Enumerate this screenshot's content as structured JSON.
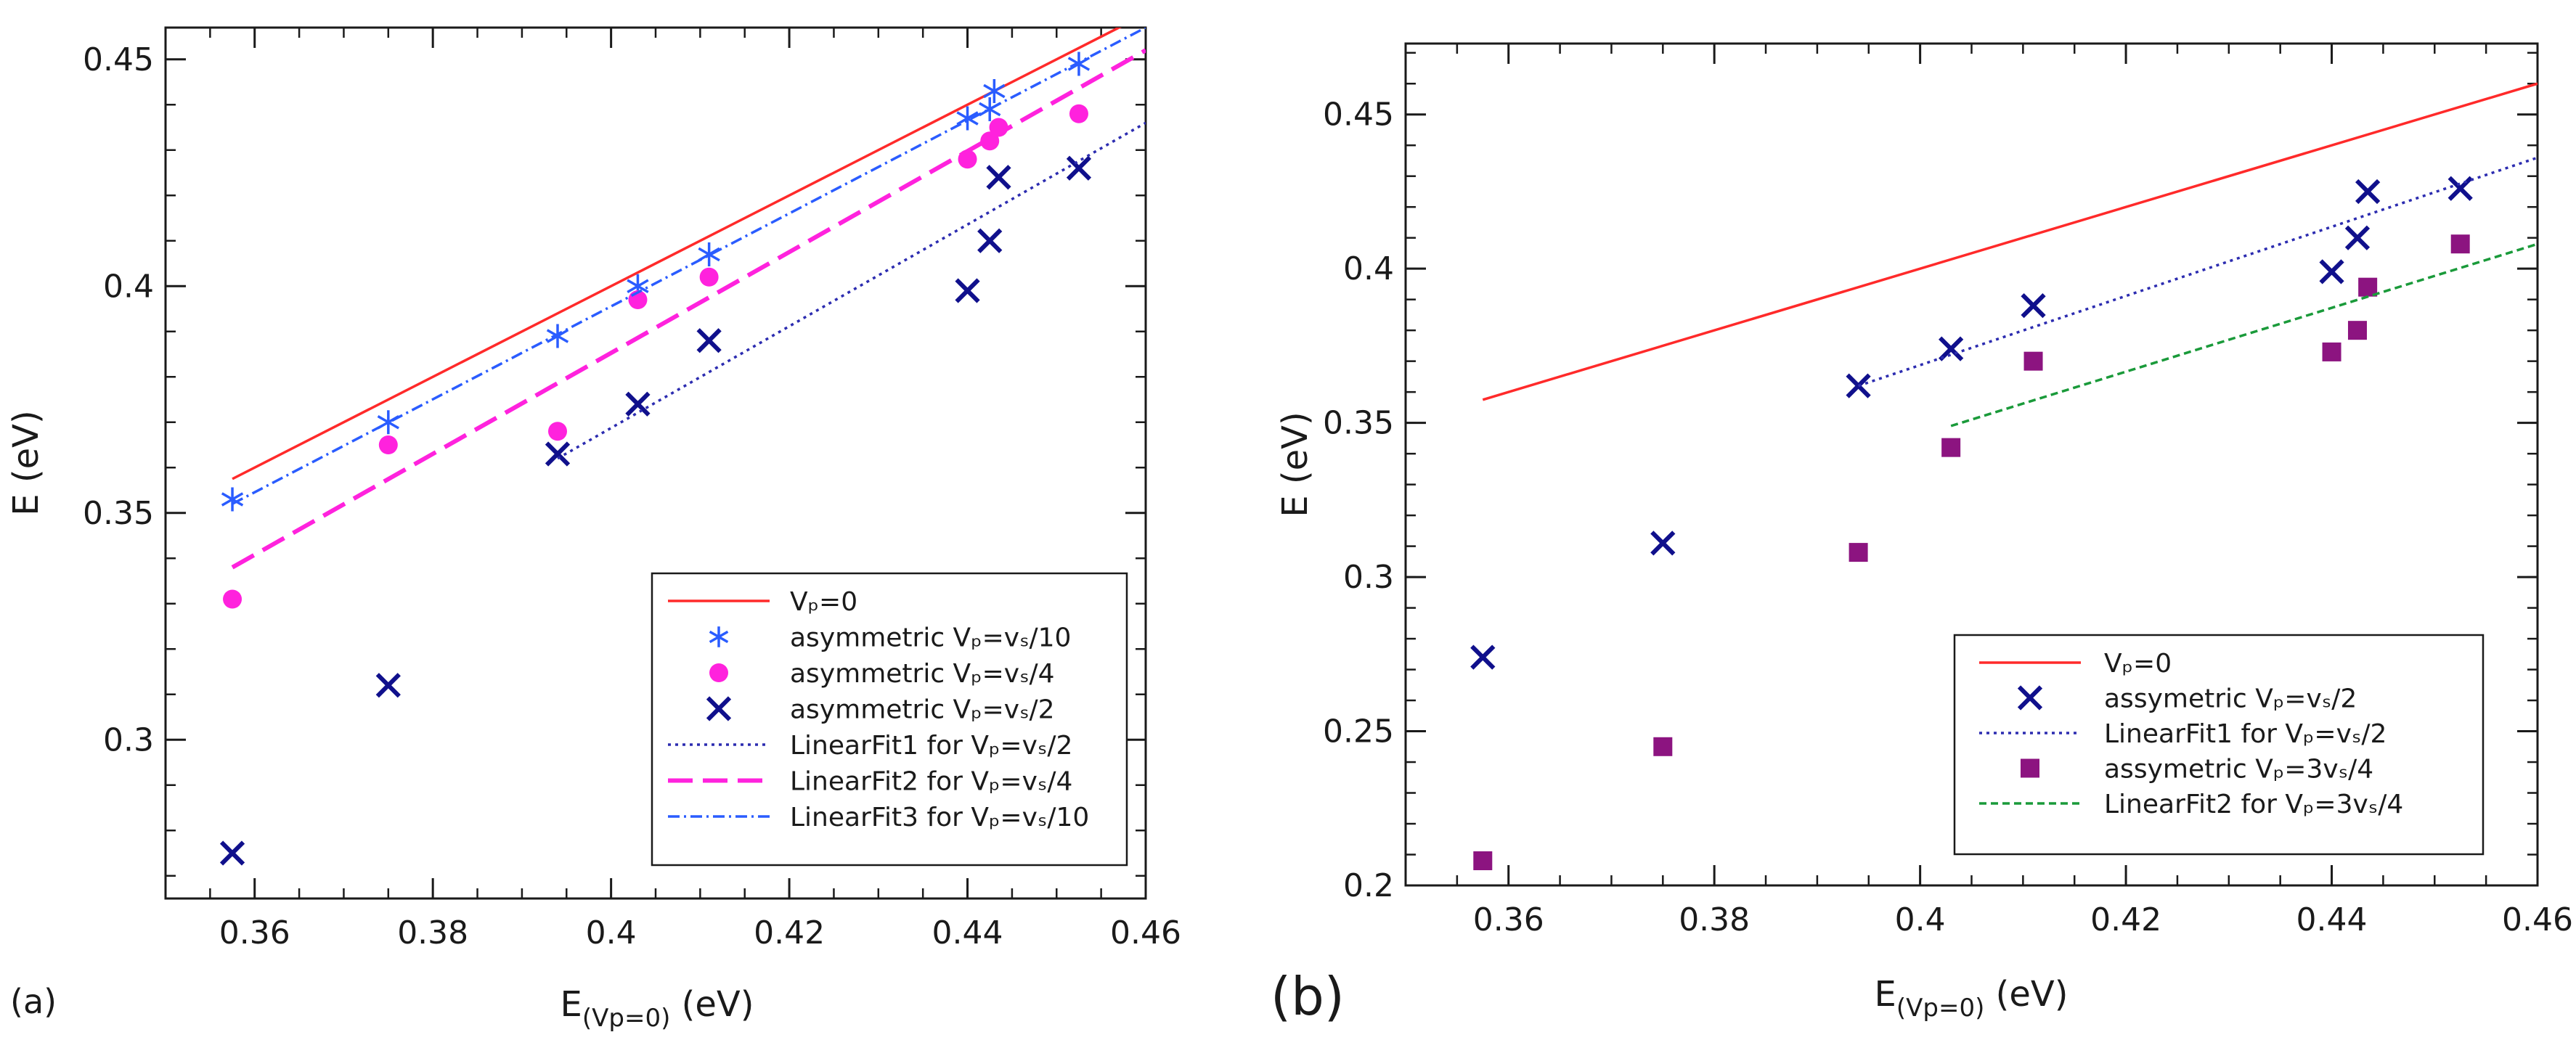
{
  "chart_data": [
    {
      "id": "a",
      "type": "scatter",
      "panel_label": "(a)",
      "xlabel_main": "E",
      "xlabel_sub": "(Vp=0)",
      "xlabel_unit": " (eV)",
      "ylabel": "E (eV)",
      "xlim": [
        0.35,
        0.46
      ],
      "ylim": [
        0.265,
        0.457
      ],
      "xticks": [
        0.36,
        0.38,
        0.4,
        0.42,
        0.44,
        0.46
      ],
      "xtick_labels": [
        "0.36",
        "0.38",
        "0.4",
        "0.42",
        "0.44",
        "0.46"
      ],
      "yticks": [
        0.3,
        0.35,
        0.4,
        0.45
      ],
      "ytick_labels": [
        "0.3",
        "0.35",
        "0.4",
        "0.45"
      ],
      "legend_position": "lower-right",
      "series": [
        {
          "key": "vp0",
          "legend": "Vₚ=0",
          "style": "line",
          "color": "#ff2a2a",
          "dash": "",
          "x": [
            0.3575,
            0.46
          ],
          "y": [
            0.3575,
            0.46
          ]
        },
        {
          "key": "asym10",
          "legend": "asymmetric Vₚ=vₛ/10",
          "style": "asterisk",
          "color": "#2a5cff",
          "x": [
            0.3575,
            0.375,
            0.394,
            0.403,
            0.411,
            0.44,
            0.4425,
            0.443,
            0.4525
          ],
          "y": [
            0.353,
            0.37,
            0.389,
            0.4,
            0.407,
            0.437,
            0.439,
            0.443,
            0.449
          ]
        },
        {
          "key": "asym4",
          "legend": "asymmetric Vₚ=vₛ/4",
          "style": "circle",
          "color": "#ff22dd",
          "x": [
            0.3575,
            0.375,
            0.394,
            0.403,
            0.411,
            0.44,
            0.4425,
            0.4435,
            0.4525
          ],
          "y": [
            0.331,
            0.365,
            0.368,
            0.397,
            0.402,
            0.428,
            0.432,
            0.435,
            0.438
          ]
        },
        {
          "key": "asym2",
          "legend": "asymmetric Vₚ=vₛ/2",
          "style": "x",
          "color": "#10108c",
          "x": [
            0.3575,
            0.375,
            0.394,
            0.403,
            0.411,
            0.44,
            0.4425,
            0.4435,
            0.4525
          ],
          "y": [
            0.275,
            0.312,
            0.363,
            0.374,
            0.388,
            0.399,
            0.41,
            0.424,
            0.426
          ]
        },
        {
          "key": "fit1",
          "legend": "LinearFit1 for Vₚ=vₛ/2",
          "style": "line",
          "color": "#2c2cb0",
          "dash": "4,6",
          "x": [
            0.394,
            0.46
          ],
          "y": [
            0.362,
            0.436
          ]
        },
        {
          "key": "fit2",
          "legend": "LinearFit2 for Vₚ=vₛ/4",
          "style": "line",
          "color": "#ff22dd",
          "dash": "34,14",
          "x": [
            0.3575,
            0.46
          ],
          "y": [
            0.338,
            0.452
          ]
        },
        {
          "key": "fit3",
          "legend": "LinearFit3 for Vₚ=vₛ/10",
          "style": "line",
          "color": "#2a5cff",
          "dash": "16,6,3,6",
          "x": [
            0.3575,
            0.46
          ],
          "y": [
            0.352,
            0.457
          ]
        }
      ]
    },
    {
      "id": "b",
      "type": "scatter",
      "panel_label": "(b)",
      "xlabel_main": "E",
      "xlabel_sub": "(Vp=0)",
      "xlabel_unit": " (eV)",
      "ylabel": "E (eV)",
      "xlim": [
        0.35,
        0.46
      ],
      "ylim": [
        0.2,
        0.473
      ],
      "xticks": [
        0.36,
        0.38,
        0.4,
        0.42,
        0.44,
        0.46
      ],
      "xtick_labels": [
        "0.36",
        "0.38",
        "0.4",
        "0.42",
        "0.44",
        "0.46"
      ],
      "yticks": [
        0.2,
        0.25,
        0.3,
        0.35,
        0.4,
        0.45
      ],
      "ytick_labels": [
        "0.2",
        "0.25",
        "0.3",
        "0.35",
        "0.4",
        "0.45"
      ],
      "legend_position": "lower-right",
      "series": [
        {
          "key": "vp0",
          "legend": "Vₚ=0",
          "style": "line",
          "color": "#ff2a2a",
          "dash": "",
          "x": [
            0.3575,
            0.46
          ],
          "y": [
            0.3575,
            0.46
          ]
        },
        {
          "key": "asym2",
          "legend": "assymetric  Vₚ=vₛ/2",
          "style": "x",
          "color": "#10108c",
          "x": [
            0.3575,
            0.375,
            0.394,
            0.403,
            0.411,
            0.44,
            0.4425,
            0.4435,
            0.4525
          ],
          "y": [
            0.274,
            0.311,
            0.362,
            0.374,
            0.388,
            0.399,
            0.41,
            0.425,
            0.426
          ]
        },
        {
          "key": "fit1",
          "legend": "LinearFit1 for Vₚ=vₛ/2",
          "style": "line",
          "color": "#2c2cb0",
          "dash": "4,6",
          "x": [
            0.394,
            0.46
          ],
          "y": [
            0.362,
            0.436
          ]
        },
        {
          "key": "asym34",
          "legend": " assymetric  Vₚ=3vₛ/4",
          "style": "square",
          "color": "#8c1480",
          "x": [
            0.3575,
            0.375,
            0.394,
            0.403,
            0.411,
            0.44,
            0.4425,
            0.4435,
            0.4525
          ],
          "y": [
            0.208,
            0.245,
            0.308,
            0.342,
            0.37,
            0.373,
            0.38,
            0.394,
            0.408
          ]
        },
        {
          "key": "fit2",
          "legend": "LinearFit2 for Vₚ=3vₛ/4",
          "style": "line",
          "color": "#1a9a3a",
          "dash": "10,6",
          "x": [
            0.403,
            0.46
          ],
          "y": [
            0.349,
            0.408
          ]
        }
      ]
    }
  ]
}
